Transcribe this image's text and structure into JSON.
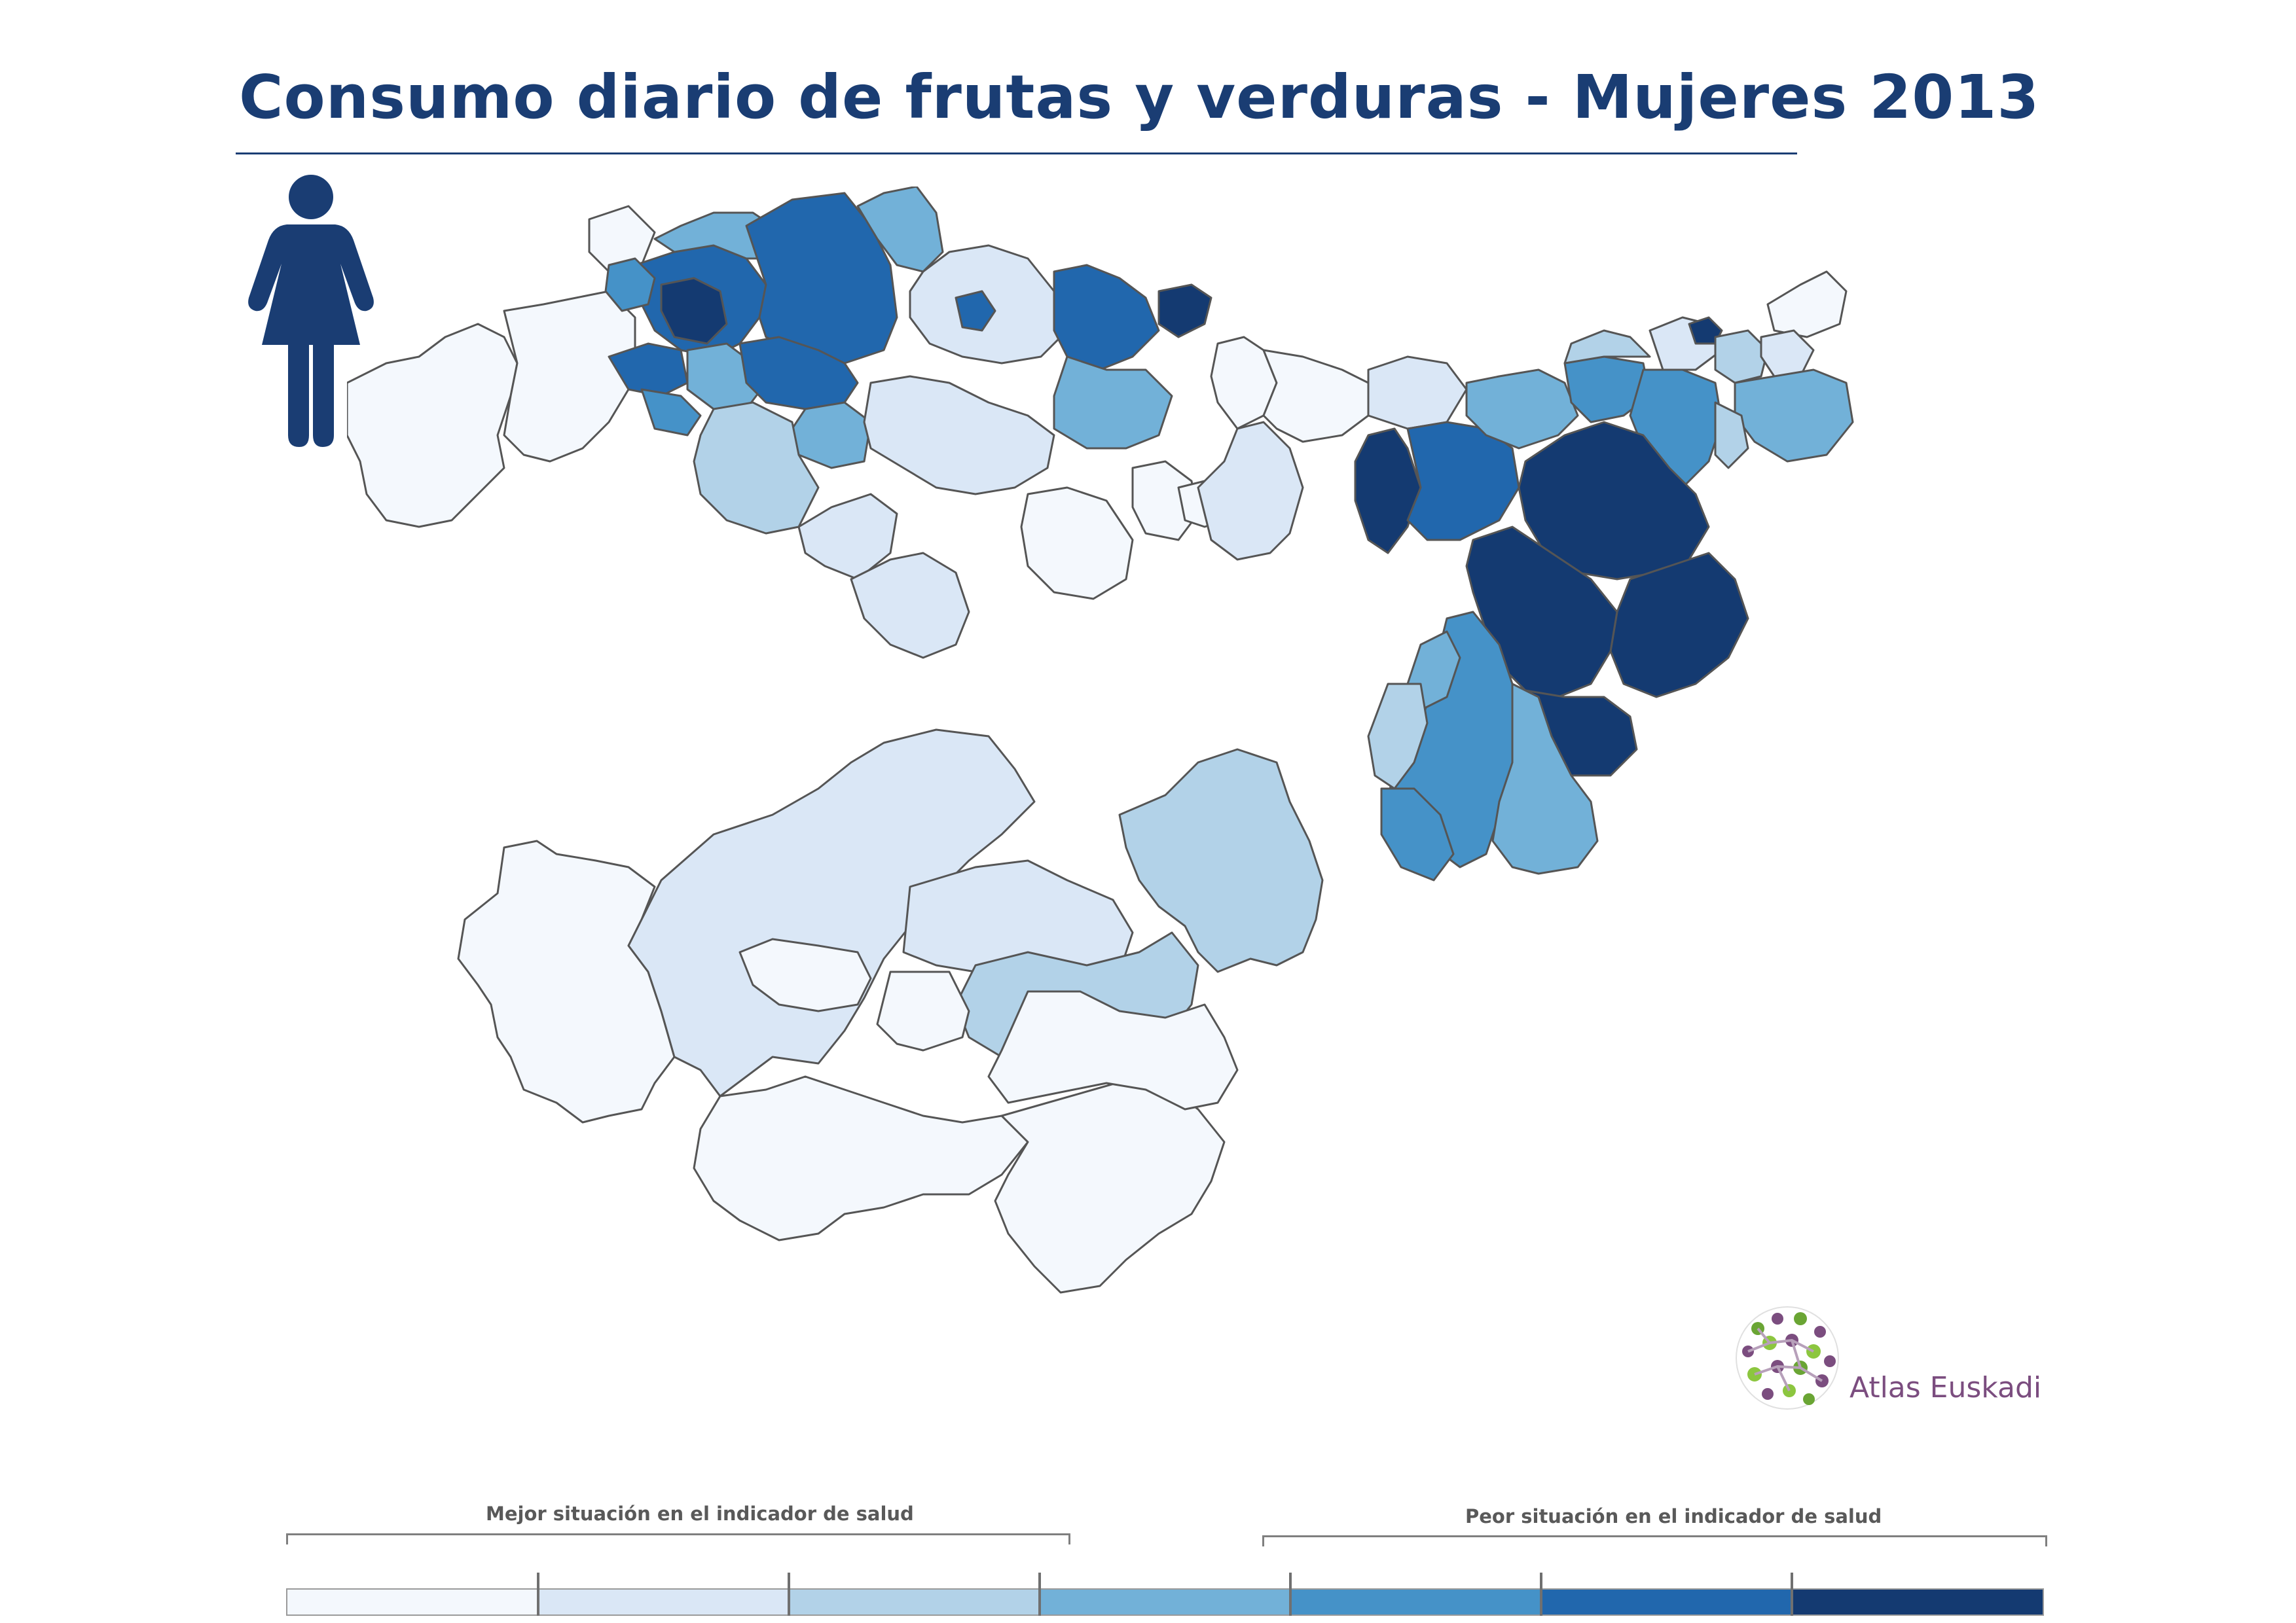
{
  "title": "Consumo diario de frutas y verduras - Mujeres 2013",
  "icons": {
    "figure": "woman-icon",
    "logo": "atlas-euskadi-logo"
  },
  "logo": {
    "text": "Atlas Euskadi"
  },
  "colors": {
    "title": "#1a3d73",
    "border": "#555555",
    "logo_text": "#7b4d7f",
    "scale": [
      "#f4f8fd",
      "#dae7f6",
      "#b2d2e8",
      "#72b1d8",
      "#4592c8",
      "#2167ad",
      "#143a71"
    ]
  },
  "legend": {
    "best_label": "Mejor situación en el indicador de salud",
    "worst_label": "Peor situación en el indicador de salud",
    "classes": 7
  }
}
